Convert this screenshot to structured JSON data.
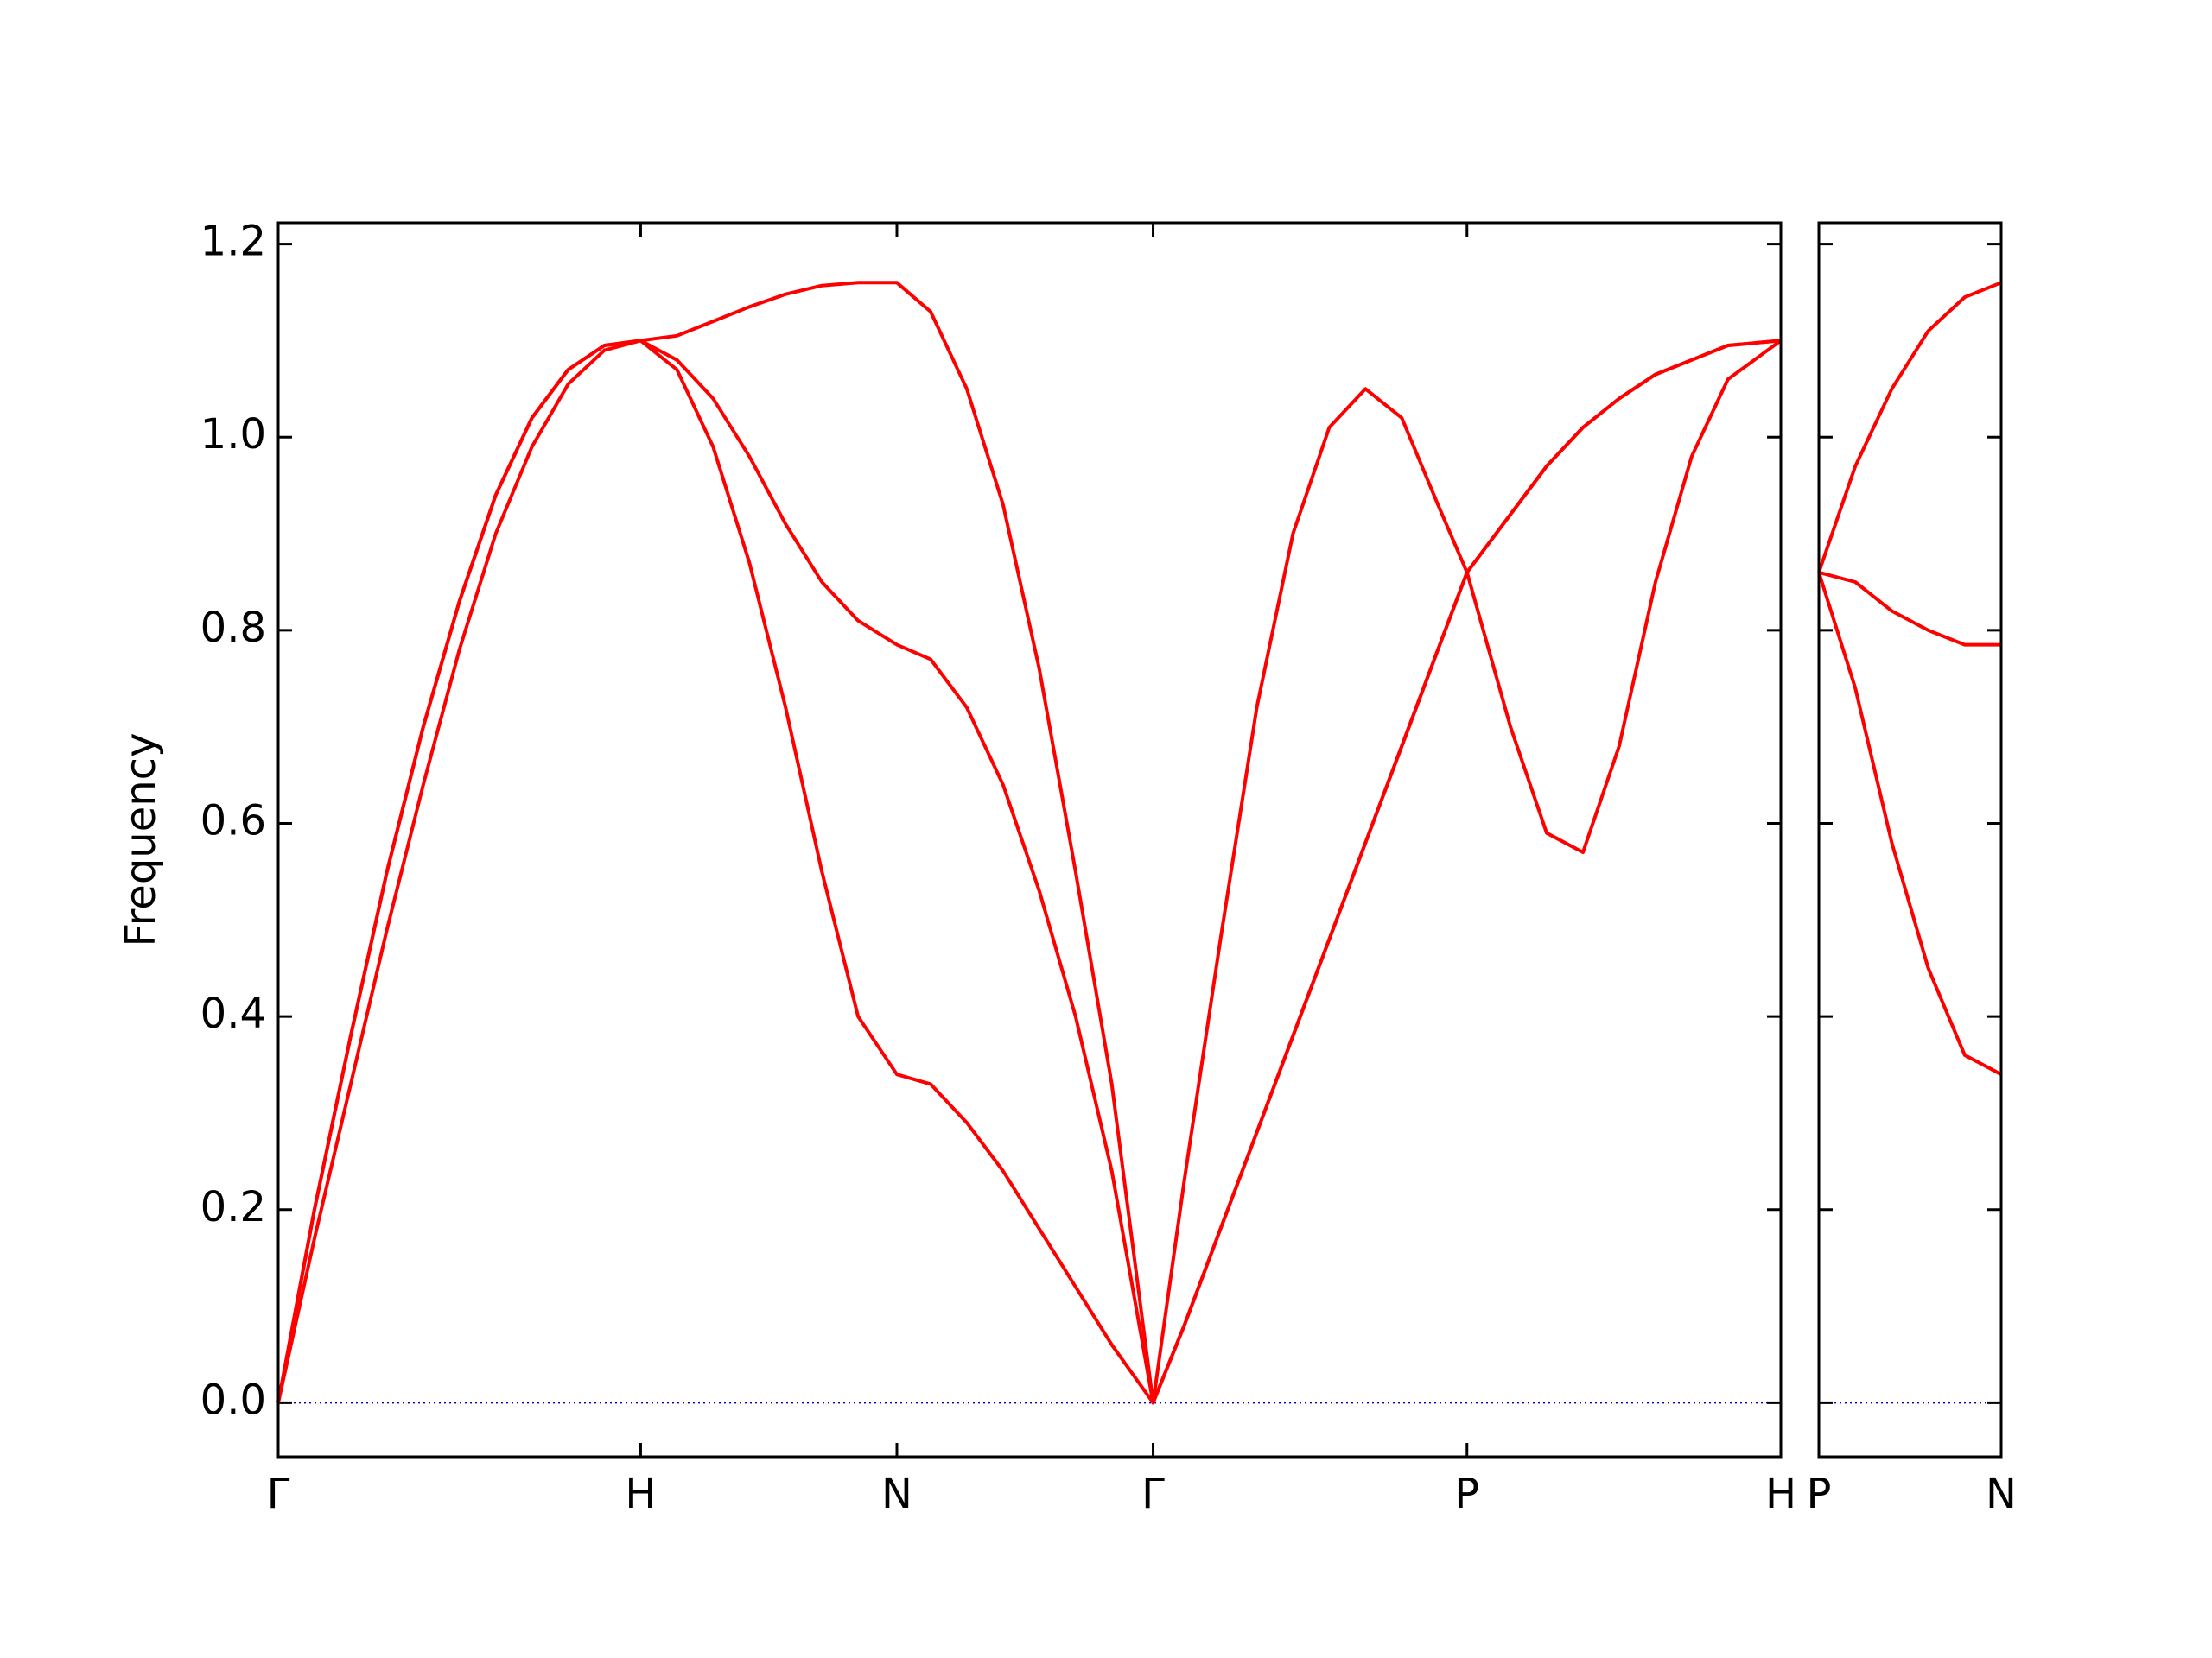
{
  "chart_data": [
    {
      "type": "line",
      "ylabel": "Frequency",
      "x": [
        0,
        0.1,
        0.2,
        0.3,
        0.4,
        0.5,
        0.6,
        0.7,
        0.8,
        0.9,
        1.0,
        1.1,
        1.2,
        1.3,
        1.4,
        1.5,
        1.6,
        1.707,
        1.8,
        1.9,
        2.0,
        2.1,
        2.2,
        2.3,
        2.414,
        2.5,
        2.6,
        2.7,
        2.8,
        2.9,
        3.0,
        3.1,
        3.2,
        3.28,
        3.4,
        3.5,
        3.6,
        3.7,
        3.8,
        3.9,
        4.0,
        4.146
      ],
      "series": [
        {
          "color": "#ff0000",
          "values": [
            0,
            0.17,
            0.33,
            0.49,
            0.64,
            0.78,
            0.9,
            0.99,
            1.055,
            1.09,
            1.1,
            1.07,
            0.99,
            0.87,
            0.72,
            0.55,
            0.4,
            0.34,
            0.33,
            0.29,
            0.24,
            0.18,
            0.12,
            0.06,
            0,
            0.08,
            0.18,
            0.28,
            0.38,
            0.48,
            0.58,
            0.68,
            0.78,
            0.86,
            0.92,
            0.97,
            1.01,
            1.04,
            1.065,
            1.08,
            1.095,
            1.1
          ]
        },
        {
          "color": "#ff0000",
          "values": [
            0,
            0.2,
            0.38,
            0.55,
            0.7,
            0.83,
            0.94,
            1.02,
            1.07,
            1.095,
            1.1,
            1.08,
            1.04,
            0.98,
            0.91,
            0.85,
            0.81,
            0.785,
            0.77,
            0.72,
            0.64,
            0.53,
            0.4,
            0.24,
            0,
            0.08,
            0.18,
            0.28,
            0.38,
            0.48,
            0.58,
            0.68,
            0.78,
            0.86,
            0.92,
            0.97,
            1.01,
            1.04,
            1.065,
            1.08,
            1.095,
            1.1
          ]
        },
        {
          "color": "#ff0000",
          "values": [
            0,
            0.2,
            0.38,
            0.55,
            0.7,
            0.83,
            0.94,
            1.02,
            1.07,
            1.095,
            1.1,
            1.105,
            1.12,
            1.135,
            1.148,
            1.157,
            1.16,
            1.16,
            1.13,
            1.05,
            0.93,
            0.76,
            0.55,
            0.33,
            0,
            0.23,
            0.48,
            0.72,
            0.9,
            1.01,
            1.05,
            1.02,
            0.93,
            0.86,
            0.7,
            0.59,
            0.57,
            0.68,
            0.85,
            0.98,
            1.06,
            1.1
          ]
        }
      ],
      "xlim": [
        0,
        4.146
      ],
      "xticks": [
        {
          "value": 0,
          "label": "Γ"
        },
        {
          "value": 1,
          "label": "H"
        },
        {
          "value": 1.707,
          "label": "N"
        },
        {
          "value": 2.414,
          "label": "Γ"
        },
        {
          "value": 3.28,
          "label": "P"
        },
        {
          "value": 4.146,
          "label": "H"
        }
      ],
      "ylim": [
        -0.056,
        1.222
      ],
      "yticks": [
        {
          "value": 0,
          "label": "0.0"
        },
        0.2,
        0.4,
        0.6,
        0.8,
        {
          "value": 1,
          "label": "1.0"
        },
        1.2
      ],
      "hline": 0,
      "hline_color": "#0000cd"
    },
    {
      "type": "line",
      "x": [
        0,
        0.1,
        0.2,
        0.3,
        0.4,
        0.5
      ],
      "series": [
        {
          "color": "#ff0000",
          "values": [
            0.86,
            0.74,
            0.58,
            0.45,
            0.36,
            0.34
          ]
        },
        {
          "color": "#ff0000",
          "values": [
            0.86,
            0.85,
            0.82,
            0.8,
            0.785,
            0.785
          ]
        },
        {
          "color": "#ff0000",
          "values": [
            0.86,
            0.97,
            1.05,
            1.11,
            1.145,
            1.16
          ]
        }
      ],
      "xlim": [
        0,
        0.5
      ],
      "xticks": [
        {
          "value": 0,
          "label": "P"
        },
        {
          "value": 0.5,
          "label": "N"
        }
      ],
      "ylim": [
        -0.056,
        1.222
      ],
      "yticks": [
        0,
        0.2,
        0.4,
        0.6,
        0.8,
        1,
        1.2
      ],
      "hline": 0,
      "hline_color": "#0000cd"
    }
  ]
}
